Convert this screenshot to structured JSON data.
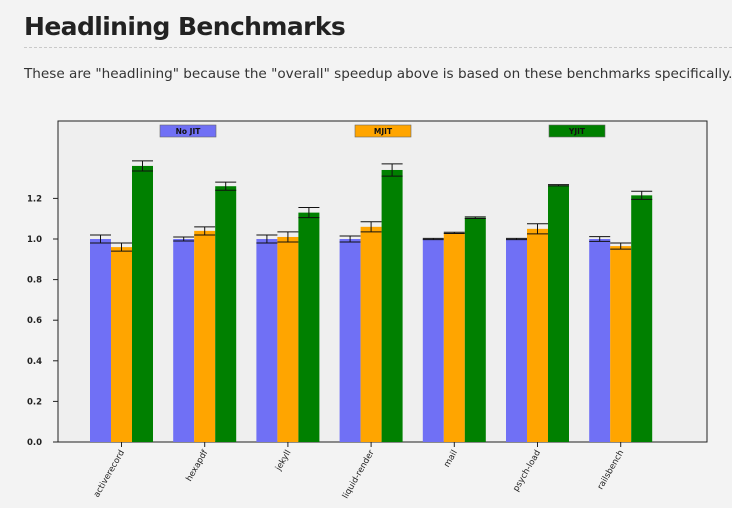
{
  "page": {
    "title": "Headlining Benchmarks",
    "intro": "These are \"headlining\" because the \"overall\" speedup above is based on these benchmarks specifically."
  },
  "chart_data": {
    "type": "bar",
    "categories": [
      "activerecord",
      "hexapdf",
      "jekyll",
      "liquid-render",
      "mail",
      "psych-load",
      "railsbench"
    ],
    "series": [
      {
        "name": "No JIT",
        "color": "#7070f5",
        "values": [
          1.0,
          1.0,
          1.0,
          1.0,
          1.0,
          1.0,
          1.0
        ],
        "errors": [
          0.02,
          0.01,
          0.02,
          0.015,
          0.003,
          0.003,
          0.012
        ]
      },
      {
        "name": "MJIT",
        "color": "#ffa500",
        "values": [
          0.96,
          1.04,
          1.01,
          1.06,
          1.03,
          1.05,
          0.965
        ],
        "errors": [
          0.02,
          0.02,
          0.025,
          0.025,
          0.003,
          0.025,
          0.015
        ]
      },
      {
        "name": "YJIT",
        "color": "#008000",
        "values": [
          1.36,
          1.26,
          1.13,
          1.34,
          1.105,
          1.265,
          1.215
        ],
        "errors": [
          0.025,
          0.02,
          0.025,
          0.03,
          0.004,
          0.003,
          0.02
        ]
      }
    ],
    "ylim": [
      0,
      1.6
    ],
    "yticks": [
      0.0,
      0.2,
      0.4,
      0.6,
      0.8,
      1.0,
      1.2
    ],
    "legend": "top, horizontal",
    "grid": false
  }
}
